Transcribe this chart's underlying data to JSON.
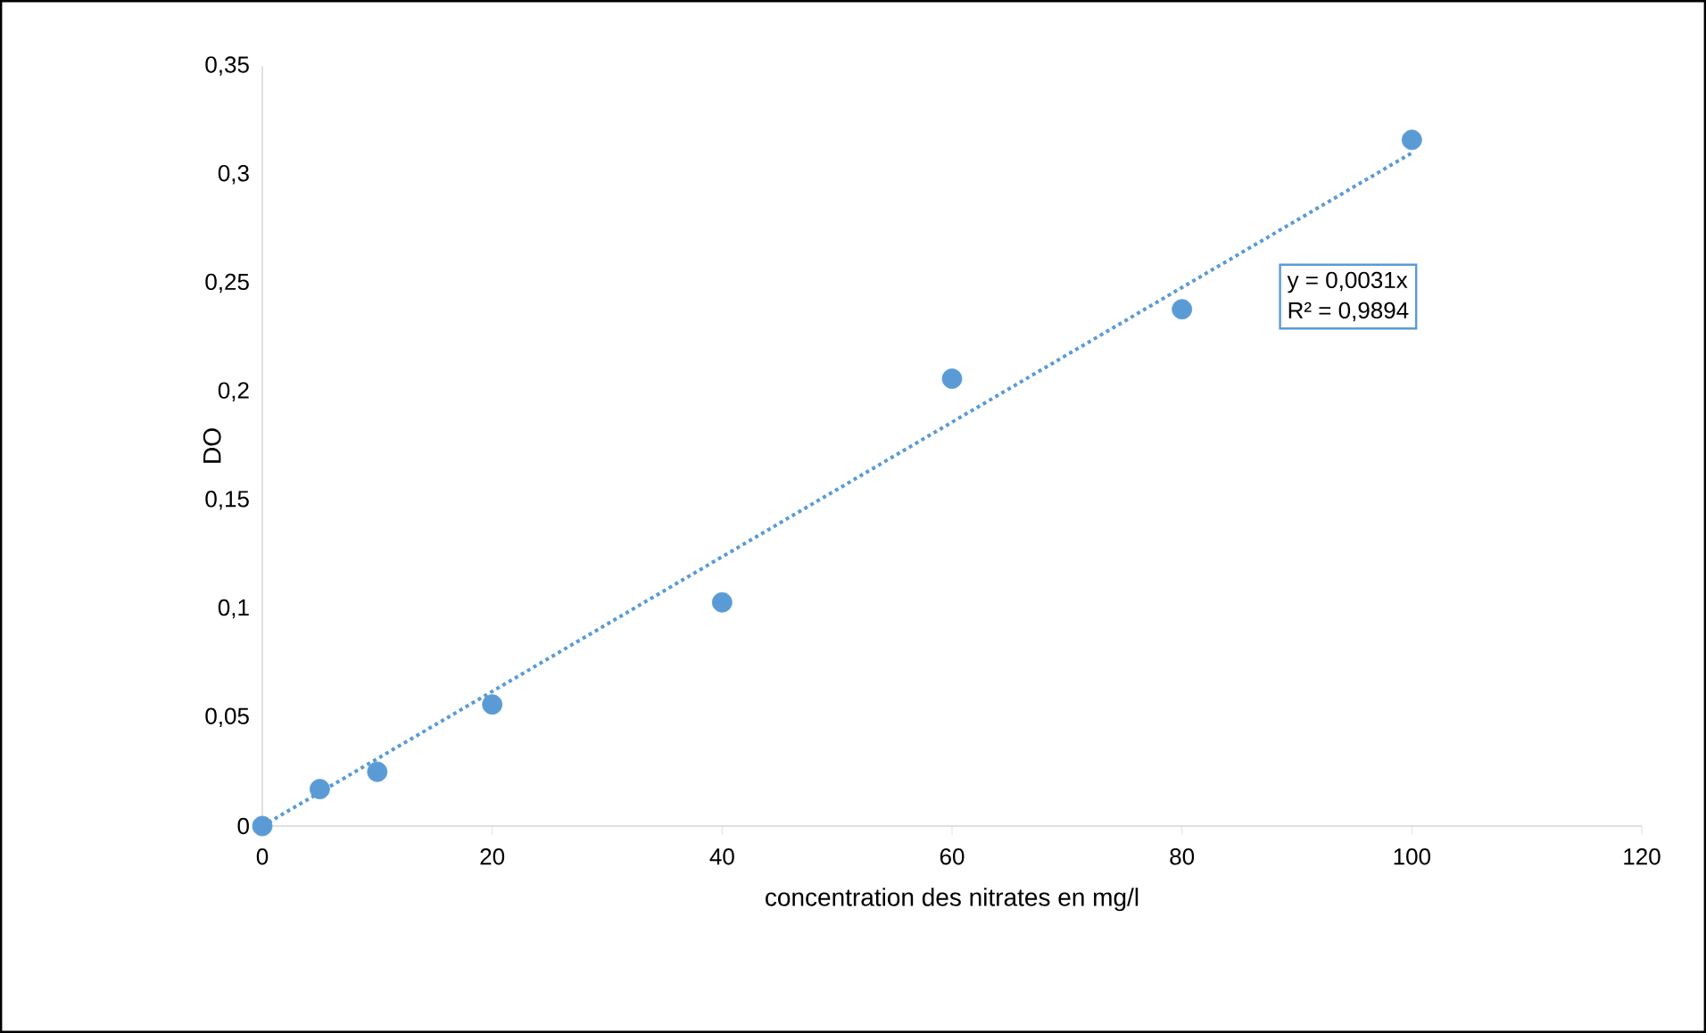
{
  "chart_data": {
    "type": "scatter",
    "xlabel": "concentration des nitrates en mg/l",
    "ylabel": "DO",
    "xlim": [
      0,
      120
    ],
    "xticks": [
      0,
      20,
      40,
      60,
      80,
      100,
      120
    ],
    "ylim": [
      0,
      0.35
    ],
    "yticks": [
      {
        "value": 0,
        "label": "0"
      },
      {
        "value": 0.05,
        "label": "0,05"
      },
      {
        "value": 0.1,
        "label": "0,1"
      },
      {
        "value": 0.15,
        "label": "0,15"
      },
      {
        "value": 0.2,
        "label": "0,2"
      },
      {
        "value": 0.25,
        "label": "0,25"
      },
      {
        "value": 0.3,
        "label": "0,3"
      },
      {
        "value": 0.35,
        "label": "0,35"
      }
    ],
    "marker": "circle",
    "series": [
      {
        "color": "#5b9bd5",
        "x": [
          0,
          5,
          10,
          20,
          40,
          60,
          80,
          100
        ],
        "values": [
          0,
          0.017,
          0.025,
          0.056,
          0.103,
          0.206,
          0.238,
          0.316
        ]
      },
      {
        "type": "line",
        "color": "#5b9bd5",
        "line_style": "dotted",
        "marker": "none",
        "x": [
          0,
          100
        ],
        "values": [
          0,
          0.31
        ]
      }
    ],
    "annotations": [
      "y = 0,0031x",
      "R² = 0,9894"
    ]
  }
}
